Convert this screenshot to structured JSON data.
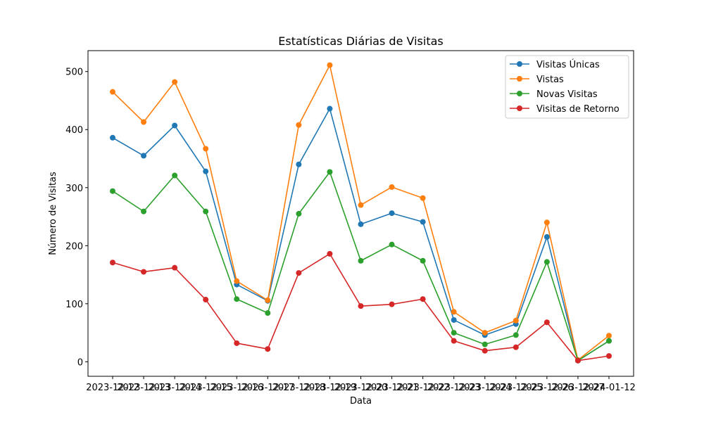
{
  "chart_data": {
    "type": "line",
    "title": "Estatísticas Diárias de Visitas",
    "xlabel": "Data",
    "ylabel": "Número de Visitas",
    "x": [
      "2023-12-12",
      "2023-12-13",
      "2023-12-14",
      "2023-12-15",
      "2023-12-16",
      "2023-12-17",
      "2023-12-18",
      "2023-12-19",
      "2023-12-20",
      "2023-12-21",
      "2023-12-22",
      "2023-12-23",
      "2023-12-24",
      "2023-12-25",
      "2023-12-26",
      "2023-12-27",
      "2024-01-12"
    ],
    "ylim": [
      -25,
      536
    ],
    "yticks": [
      0,
      100,
      200,
      300,
      400,
      500
    ],
    "grid": false,
    "legend_position": "top-right",
    "series": [
      {
        "name": "Visitas Únicas",
        "color": "#1f77b4",
        "marker": "circle",
        "values": [
          386,
          355,
          407,
          328,
          133,
          105,
          340,
          436,
          237,
          256,
          241,
          72,
          46,
          65,
          215,
          2,
          36
        ]
      },
      {
        "name": "Vistas",
        "color": "#ff7f0e",
        "marker": "circle",
        "values": [
          465,
          413,
          482,
          367,
          139,
          106,
          408,
          511,
          270,
          301,
          282,
          86,
          50,
          71,
          240,
          3,
          45
        ]
      },
      {
        "name": "Novas Visitas",
        "color": "#2ca02c",
        "marker": "circle",
        "values": [
          294,
          259,
          321,
          259,
          108,
          84,
          255,
          327,
          174,
          202,
          174,
          50,
          30,
          46,
          172,
          2,
          36
        ]
      },
      {
        "name": "Visitas de Retorno",
        "color": "#d62728",
        "marker": "circle",
        "values": [
          171,
          155,
          162,
          107,
          32,
          22,
          153,
          186,
          96,
          99,
          108,
          36,
          19,
          25,
          68,
          2,
          10
        ]
      }
    ]
  }
}
